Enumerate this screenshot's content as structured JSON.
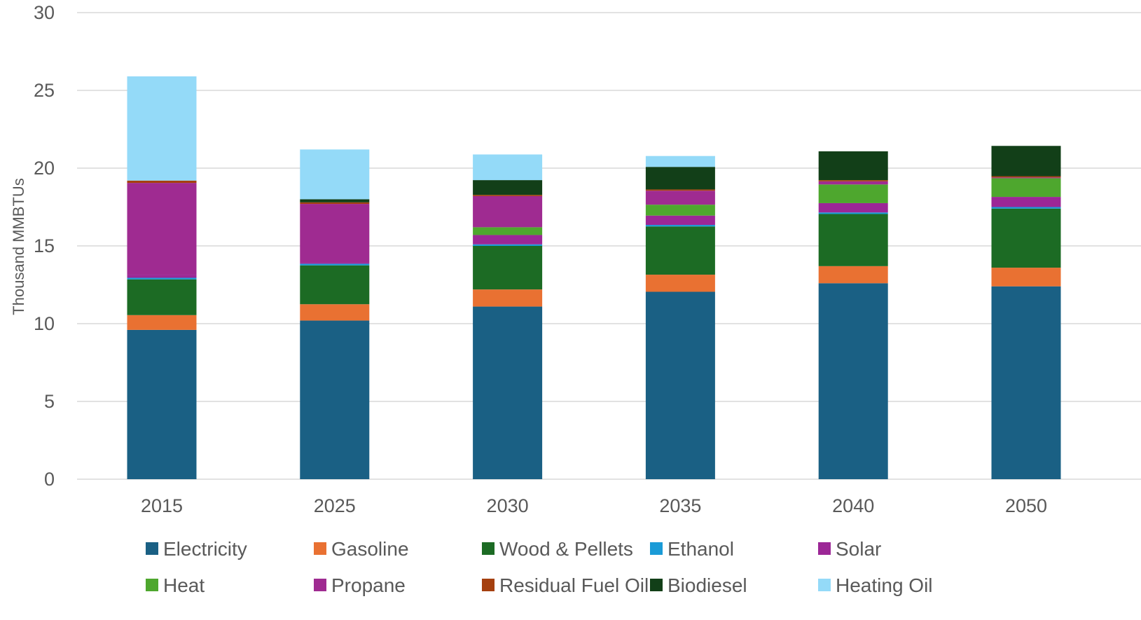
{
  "chart_data": {
    "type": "bar",
    "stacked": true,
    "ylabel": "Thousand MMBTUs",
    "xlabel": "",
    "ylim": [
      0,
      30
    ],
    "yticks": [
      0,
      5,
      10,
      15,
      20,
      25,
      30
    ],
    "grid": true,
    "legend_position": "bottom",
    "categories": [
      "2015",
      "2025",
      "2030",
      "2035",
      "2040",
      "2050"
    ],
    "series": [
      {
        "name": "Electricity",
        "color": "#1a6084",
        "values": [
          9.6,
          10.2,
          11.1,
          12.05,
          12.6,
          12.4
        ]
      },
      {
        "name": "Gasoline",
        "color": "#e97132",
        "values": [
          0.95,
          1.05,
          1.1,
          1.1,
          1.1,
          1.2
        ]
      },
      {
        "name": "Wood & Pellets",
        "color": "#1c6b24",
        "values": [
          2.3,
          2.5,
          2.8,
          3.1,
          3.35,
          3.8
        ]
      },
      {
        "name": "Ethanol",
        "color": "#1a9bd7",
        "values": [
          0.1,
          0.1,
          0.1,
          0.1,
          0.1,
          0.1
        ]
      },
      {
        "name": "Solar",
        "color": "#9c2796",
        "values": [
          0.2,
          0.05,
          0.6,
          0.6,
          0.6,
          0.65
        ]
      },
      {
        "name": "Heat",
        "color": "#4ea72e",
        "values": [
          0.0,
          0.0,
          0.5,
          0.7,
          1.2,
          1.2
        ]
      },
      {
        "name": "Propane",
        "color": "#9f2b91",
        "values": [
          5.9,
          3.8,
          2.0,
          0.9,
          0.2,
          0.05
        ]
      },
      {
        "name": "Residual Fuel Oil",
        "color": "#a5400f",
        "values": [
          0.15,
          0.1,
          0.08,
          0.08,
          0.08,
          0.08
        ]
      },
      {
        "name": "Biodiesel",
        "color": "#123f18",
        "values": [
          0.0,
          0.2,
          0.95,
          1.45,
          1.85,
          1.95
        ]
      },
      {
        "name": "Heating Oil",
        "color": "#94daf8",
        "values": [
          6.7,
          3.2,
          1.65,
          0.7,
          0.0,
          0.0
        ]
      }
    ]
  }
}
